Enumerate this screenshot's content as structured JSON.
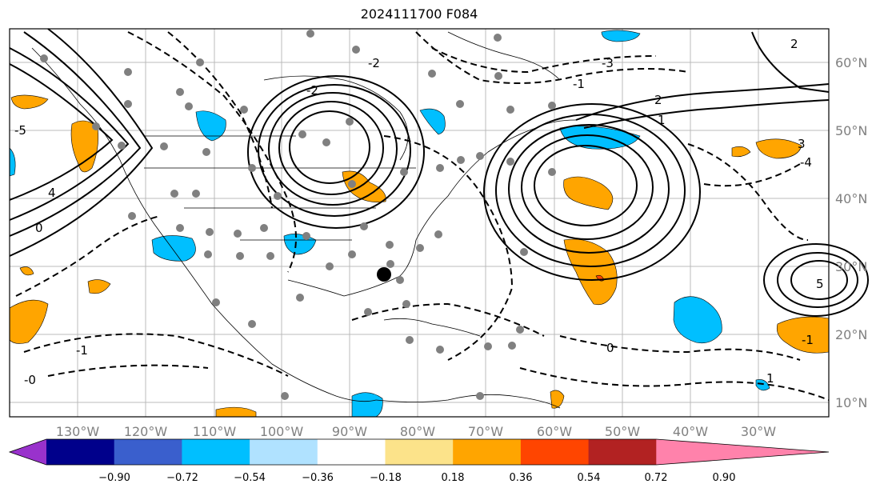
{
  "title": "2024111700 F084",
  "map": {
    "lon_labels": [
      "130°W",
      "120°W",
      "110°W",
      "100°W",
      "90°W",
      "80°W",
      "70°W",
      "60°W",
      "50°W",
      "40°W",
      "30°W"
    ],
    "lat_labels": [
      "60°N",
      "50°N",
      "40°N",
      "30°N",
      "20°N",
      "10°N"
    ],
    "contour_labels": [
      "2",
      "-2",
      "3",
      "-3",
      "-1",
      "1",
      "-4",
      "4",
      "0",
      "-0",
      "-1",
      "1",
      "2",
      "-2",
      "0",
      "-5",
      "5",
      "-1"
    ]
  },
  "colorbar": {
    "ticks": [
      "−0.90",
      "−0.72",
      "−0.54",
      "−0.36",
      "−0.18",
      "0.18",
      "0.36",
      "0.54",
      "0.72",
      "0.90"
    ],
    "colors": [
      "#9932cc",
      "#00008b",
      "#3a5fcd",
      "#00bfff",
      "#b0e2ff",
      "#ffffff",
      "#fce38a",
      "#ffa500",
      "#ff4500",
      "#b22222",
      "#ff82ab"
    ]
  }
}
